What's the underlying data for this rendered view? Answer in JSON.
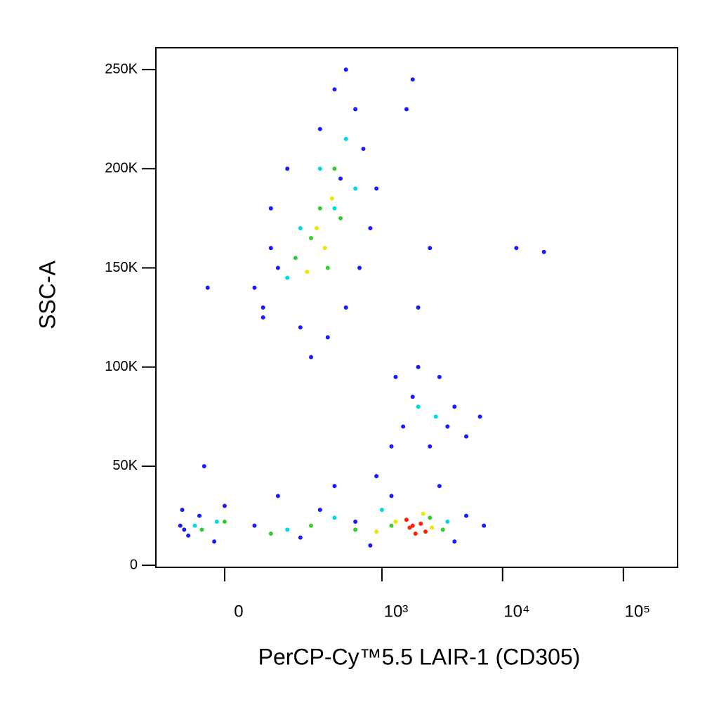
{
  "chart_data": {
    "type": "scatter",
    "xlabel": "PerCP-Cy™5.5 LAIR-1 (CD305)",
    "ylabel": "SSC-A",
    "xscale": "biexponential",
    "xlim": [
      -172,
      281000
    ],
    "xticks": [
      0,
      {
        "value": 1000,
        "label": "10³"
      },
      {
        "value": 10000,
        "label": "10⁴"
      },
      {
        "value": 100000,
        "label": "10⁵"
      }
    ],
    "ylim": [
      -1000,
      261000
    ],
    "yticks": [
      0,
      {
        "value": 50000,
        "label": "50K"
      },
      {
        "value": 100000,
        "label": "100K"
      },
      {
        "value": 150000,
        "label": "150K"
      },
      {
        "value": 200000,
        "label": "200K"
      },
      {
        "value": 250000,
        "label": "250K"
      }
    ],
    "series": [
      {
        "color": "#1a1aff",
        "x": [
          300,
          400,
          500,
          600,
          150,
          700,
          100,
          100,
          60,
          80,
          200,
          350,
          500,
          800,
          900,
          250,
          120,
          80,
          650,
          450,
          1300,
          1500,
          2000,
          3000,
          4000,
          5000,
          1200,
          2500,
          6500,
          3500,
          1800,
          -95,
          -90,
          -75,
          -50,
          -20,
          0,
          60,
          120,
          200,
          300,
          400,
          600,
          900,
          1200,
          3000,
          5000,
          7000,
          4000,
          800,
          -85,
          1600,
          1800,
          2500,
          13000,
          22000,
          -33,
          -40,
          2000
        ],
        "y": [
          220000,
          240000,
          250000,
          230000,
          200000,
          210000,
          180000,
          160000,
          140000,
          130000,
          120000,
          115000,
          130000,
          170000,
          190000,
          105000,
          150000,
          125000,
          150000,
          195000,
          95000,
          70000,
          100000,
          95000,
          80000,
          65000,
          60000,
          60000,
          75000,
          70000,
          85000,
          20000,
          28000,
          15000,
          25000,
          12000,
          30000,
          20000,
          35000,
          14000,
          28000,
          40000,
          22000,
          45000,
          35000,
          40000,
          25000,
          20000,
          12000,
          10000,
          18000,
          230000,
          245000,
          160000,
          160000,
          158000,
          140000,
          50000,
          130000
        ]
      },
      {
        "color": "#00d8e8",
        "x": [
          300,
          200,
          500,
          150,
          400,
          600,
          2000,
          2800,
          -60,
          -15,
          150,
          400,
          3500,
          1000
        ],
        "y": [
          200000,
          170000,
          215000,
          145000,
          180000,
          190000,
          80000,
          75000,
          20000,
          22000,
          18000,
          24000,
          22000,
          28000
        ]
      },
      {
        "color": "#33cc33",
        "x": [
          300,
          250,
          400,
          180,
          350,
          450,
          -45,
          0,
          100,
          250,
          600,
          2500,
          3200,
          1200
        ],
        "y": [
          180000,
          165000,
          200000,
          155000,
          150000,
          175000,
          18000,
          22000,
          16000,
          20000,
          18000,
          24000,
          18000,
          20000
        ]
      },
      {
        "color": "#e8e800",
        "x": [
          280,
          330,
          230,
          380,
          1300,
          2600,
          900,
          2200
        ],
        "y": [
          170000,
          160000,
          148000,
          185000,
          22000,
          19000,
          17000,
          26000
        ]
      },
      {
        "color": "#ff2200",
        "x": [
          1700,
          1900,
          2100,
          1600,
          2300,
          1800
        ],
        "y": [
          19000,
          16000,
          21000,
          23000,
          17000,
          20000
        ]
      }
    ]
  }
}
